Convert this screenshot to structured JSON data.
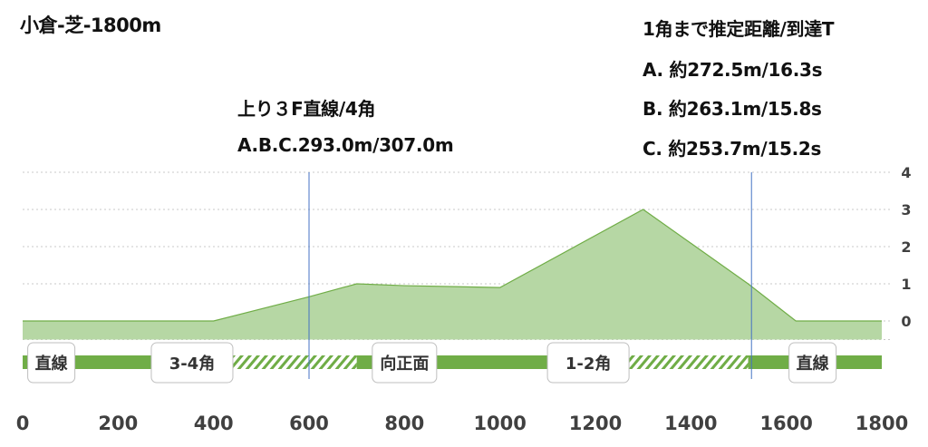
{
  "chart_data": {
    "type": "area",
    "title": "小倉-芝-1800m",
    "x": [
      0,
      400,
      600,
      700,
      800,
      1000,
      1300,
      1520,
      1620,
      1800
    ],
    "values": [
      0,
      0,
      0.65,
      1.0,
      0.95,
      0.9,
      3.0,
      1.0,
      0,
      0
    ],
    "xlim": [
      0,
      1800
    ],
    "ylim": [
      -0.5,
      4
    ],
    "x_ticks": [
      "0",
      "200",
      "400",
      "600",
      "800",
      "1000",
      "1200",
      "1400",
      "1600",
      "1800"
    ],
    "y_ticks": [
      "0",
      "1",
      "2",
      "3",
      "4"
    ],
    "grid": "horizontal dotted",
    "fill_color": "#b6d7a4",
    "line_color": "#70ad47",
    "vertical_lines": [
      {
        "x": 600,
        "color": "#4472c4"
      },
      {
        "x": 1527,
        "color": "#4472c4"
      }
    ],
    "annotations": [
      {
        "lines": [
          "上り３F直線/4角",
          "A.B.C.293.0m/307.0m"
        ]
      },
      {
        "lines": [
          "1角まで推定距離/到達T",
          "A. 約272.5m/16.3s",
          "B. 約263.1m/15.8s",
          "C. 約253.7m/15.2s"
        ]
      }
    ],
    "track_segments": [
      {
        "label": "直線",
        "start": 0,
        "end": 400,
        "style": "solid"
      },
      {
        "label": "3-4角",
        "start": 400,
        "end": 700,
        "style": "hatched"
      },
      {
        "label": "向正面",
        "start": 700,
        "end": 1100,
        "style": "solid"
      },
      {
        "label": "1-2角",
        "start": 1100,
        "end": 1520,
        "style": "hatched"
      },
      {
        "label": "直線",
        "start": 1520,
        "end": 1800,
        "style": "solid"
      }
    ],
    "segment_labels": [
      {
        "label": "直線",
        "x": 60
      },
      {
        "label": "3-4角",
        "x": 355
      },
      {
        "label": "向正面",
        "x": 800
      },
      {
        "label": "1-2角",
        "x": 1185
      },
      {
        "label": "直線",
        "x": 1655
      }
    ],
    "segment_color": "#70ad47"
  }
}
